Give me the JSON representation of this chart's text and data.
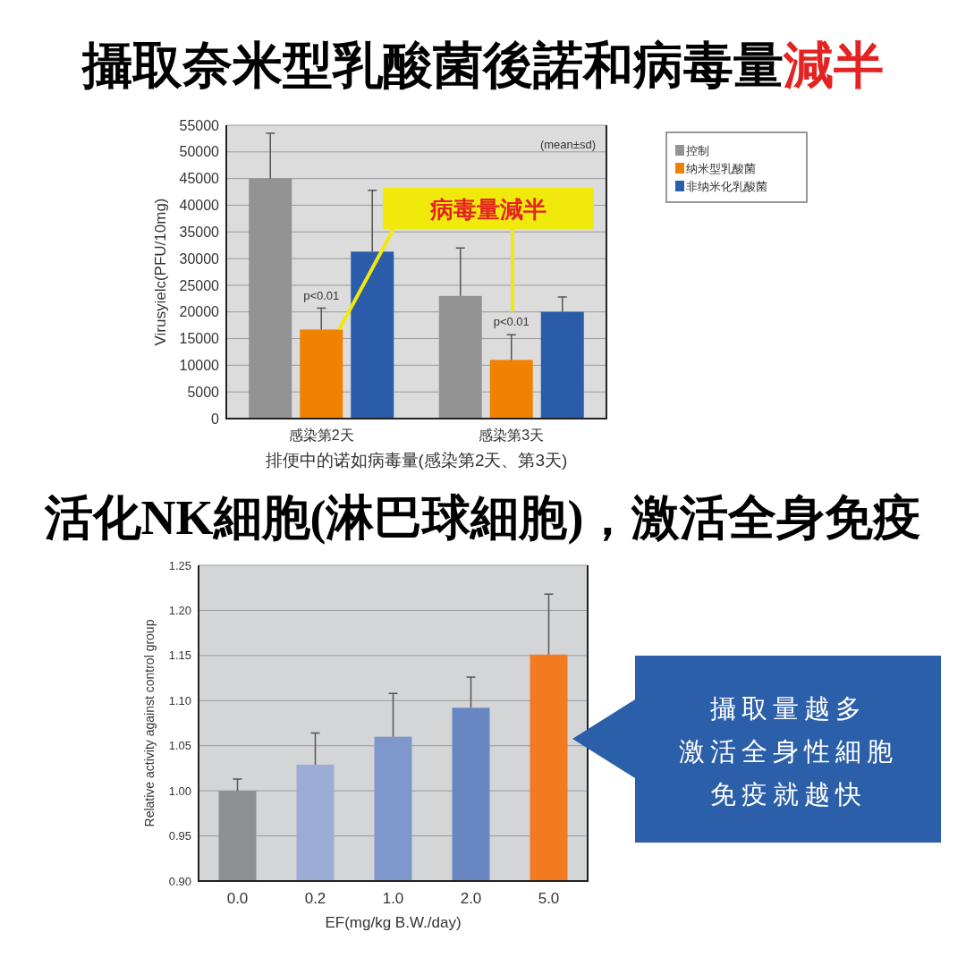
{
  "chart_data": [
    {
      "type": "bar",
      "title": "攝取奈米型乳酸菌後諾和病毒量減半",
      "xlabel": "排便中的诺如病毒量(感染第2天、第3天)",
      "ylabel": "Virusyielc(PFU/10mg)",
      "categories": [
        "感染第2天",
        "感染第3天"
      ],
      "series": [
        {
          "name": "控制",
          "color": "#939393",
          "values": [
            45000,
            23000
          ],
          "errors": [
            [
              45000,
              53500
            ],
            [
              23000,
              32000
            ]
          ]
        },
        {
          "name": "纳米型乳酸菌",
          "color": "#ef8200",
          "values": [
            16700,
            11000
          ],
          "errors": [
            [
              16700,
              20700
            ],
            [
              11000,
              15700
            ]
          ]
        },
        {
          "name": "非纳米化乳酸菌",
          "color": "#2a5caa",
          "values": [
            31300,
            20000
          ],
          "errors": [
            [
              31300,
              42800
            ],
            [
              20000,
              22800
            ]
          ]
        }
      ],
      "ylim": [
        0,
        55000
      ],
      "yticks": [
        0,
        5000,
        10000,
        15000,
        20000,
        25000,
        30000,
        35000,
        40000,
        45000,
        50000,
        55000
      ],
      "grid": "y",
      "legend": "right",
      "annotations": [
        "(mean±sd)",
        "病毒量減半",
        {
          "text": "p<0.01",
          "x": "感染第2天",
          "y": 20700
        },
        {
          "text": "p<0.01",
          "x": "感染第3天",
          "y": 15700
        }
      ]
    },
    {
      "type": "bar",
      "title": "活化NK細胞(淋巴球細胞)，激活全身免疫",
      "xlabel": "EF(mg/kg B.W./day)",
      "ylabel": "Relative activity against control group",
      "categories": [
        "0.0",
        "0.2",
        "1.0",
        "2.0",
        "5.0"
      ],
      "values": [
        1.0,
        1.029,
        1.06,
        1.092,
        1.151
      ],
      "colors": [
        "#8e8f91",
        "#9badd6",
        "#7f98cc",
        "#6786c2",
        "#f27b22"
      ],
      "errors": [
        [
          1.0,
          1.013
        ],
        [
          1.029,
          1.064
        ],
        [
          1.06,
          1.108
        ],
        [
          1.092,
          1.126
        ],
        [
          1.151,
          1.218
        ]
      ],
      "ylim": [
        0.9,
        1.25
      ],
      "yticks": [
        {
          "value": 0.9,
          "label": "0.90"
        },
        0.95,
        {
          "value": 1.0,
          "label": "1.00"
        },
        1.05,
        {
          "value": 1.1,
          "label": "1.10"
        },
        1.15,
        {
          "value": 1.2,
          "label": "1.20"
        },
        1.25
      ],
      "grid": "y",
      "annotations": [
        "攝取量越多",
        "激活全身性細胞",
        "免疫就越快"
      ]
    }
  ]
}
